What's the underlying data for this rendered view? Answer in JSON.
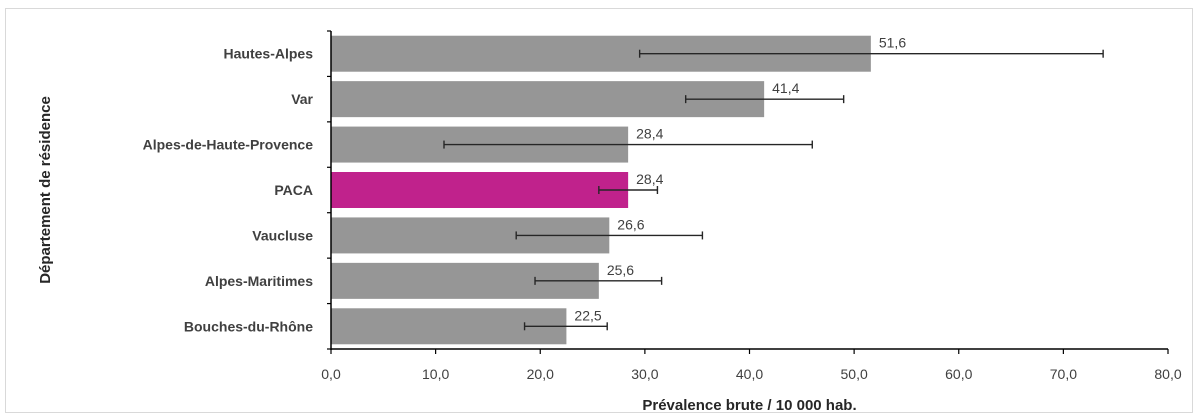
{
  "chart_data": {
    "type": "bar",
    "orientation": "horizontal",
    "title": "",
    "xlabel": "Prévalence brute / 10 000 hab.",
    "ylabel": "Département de résidence",
    "xlim": [
      0,
      80
    ],
    "xticks": [
      0,
      10,
      20,
      30,
      40,
      50,
      60,
      70,
      80
    ],
    "xtick_labels": [
      "0,0",
      "10,0",
      "20,0",
      "30,0",
      "40,0",
      "50,0",
      "60,0",
      "70,0",
      "80,0"
    ],
    "grid": false,
    "legend": "none",
    "categories": [
      "Hautes-Alpes",
      "Var",
      "Alpes-de-Haute-Provence",
      "PACA",
      "Vaucluse",
      "Alpes-Maritimes",
      "Bouches-du-Rhône"
    ],
    "values": [
      51.6,
      41.4,
      28.4,
      28.4,
      26.6,
      25.6,
      22.5
    ],
    "value_labels": [
      "51,6",
      "41,4",
      "28,4",
      "28,4",
      "26,6",
      "25,6",
      "22,5"
    ],
    "error_low": [
      29.5,
      33.9,
      10.8,
      25.6,
      17.7,
      19.5,
      18.5
    ],
    "error_high": [
      73.8,
      49.0,
      46.0,
      31.2,
      35.5,
      31.6,
      26.4
    ],
    "highlight_category": "PACA",
    "colors": {
      "bar": "#969696",
      "highlight": "#c0228c",
      "error": "#262626",
      "axis": "#000000"
    }
  }
}
